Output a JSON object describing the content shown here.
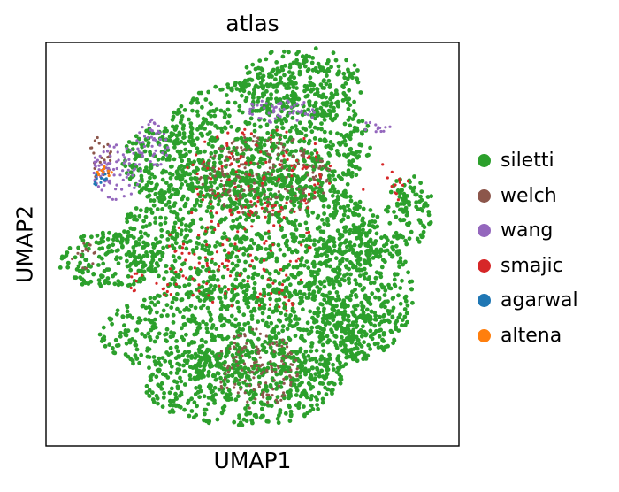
{
  "chart_data": {
    "type": "scatter",
    "title": "atlas",
    "xlabel": "UMAP1",
    "ylabel": "UMAP2",
    "xlim": [
      0,
      100
    ],
    "ylim": [
      0,
      100
    ],
    "xticks": [],
    "yticks": [],
    "grid": false,
    "legend_position": "right",
    "series": [
      {
        "name": "siletti",
        "color": "#2ca02c",
        "regions": [
          {
            "x": 53,
            "y": 75,
            "rx": 26,
            "ry": 16
          },
          {
            "x": 50,
            "y": 52,
            "rx": 32,
            "ry": 16
          },
          {
            "x": 48,
            "y": 28,
            "rx": 35,
            "ry": 12
          },
          {
            "x": 48,
            "y": 15,
            "rx": 24,
            "ry": 10
          },
          {
            "x": 76,
            "y": 38,
            "rx": 13,
            "ry": 16
          },
          {
            "x": 88,
            "y": 58,
            "rx": 6,
            "ry": 9
          },
          {
            "x": 62,
            "y": 90,
            "rx": 15,
            "ry": 9
          },
          {
            "x": 28,
            "y": 70,
            "rx": 10,
            "ry": 9
          },
          {
            "x": 15,
            "y": 46,
            "rx": 12,
            "ry": 7
          }
        ]
      },
      {
        "name": "welch",
        "color": "#8c564b",
        "regions": [
          {
            "x": 53,
            "y": 67,
            "rx": 16,
            "ry": 10
          },
          {
            "x": 51,
            "y": 19,
            "rx": 10,
            "ry": 10
          },
          {
            "x": 9,
            "y": 47,
            "rx": 3.2,
            "ry": 3.5
          },
          {
            "x": 13,
            "y": 71,
            "rx": 3,
            "ry": 6
          }
        ]
      },
      {
        "name": "wang",
        "color": "#9467bd",
        "regions": [
          {
            "x": 57,
            "y": 83,
            "rx": 9,
            "ry": 3
          },
          {
            "x": 17,
            "y": 68,
            "rx": 6,
            "ry": 7
          },
          {
            "x": 26,
            "y": 75,
            "rx": 4,
            "ry": 6
          },
          {
            "x": 80,
            "y": 79,
            "rx": 4,
            "ry": 1.5
          }
        ]
      },
      {
        "name": "smajic",
        "color": "#d62728",
        "regions": [
          {
            "x": 52,
            "y": 68,
            "rx": 18,
            "ry": 12
          },
          {
            "x": 29,
            "y": 40,
            "rx": 3,
            "ry": 3
          },
          {
            "x": 22,
            "y": 41,
            "rx": 2,
            "ry": 3
          },
          {
            "x": 57,
            "y": 35,
            "rx": 3,
            "ry": 2
          },
          {
            "x": 47,
            "y": 48,
            "rx": 18,
            "ry": 14
          },
          {
            "x": 82,
            "y": 65,
            "rx": 6,
            "ry": 5
          }
        ]
      },
      {
        "name": "agarwal",
        "color": "#1f77b4",
        "regions": [
          {
            "x": 13,
            "y": 66,
            "rx": 2,
            "ry": 2
          }
        ]
      },
      {
        "name": "altena",
        "color": "#ff7f0e",
        "regions": [
          {
            "x": 14,
            "y": 68,
            "rx": 2,
            "ry": 2
          }
        ]
      }
    ]
  }
}
